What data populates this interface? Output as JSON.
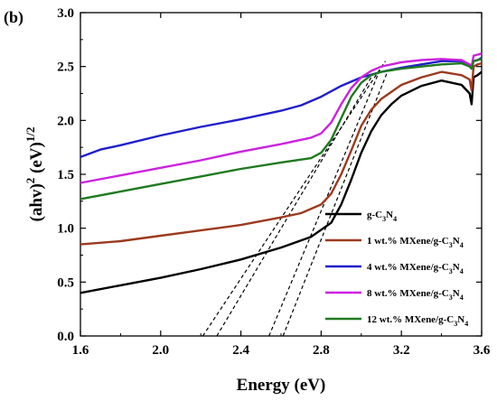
{
  "panel_label": "(b)",
  "chart_data": {
    "type": "line",
    "xlabel": "Energy (eV)",
    "ylabel": {
      "base": "(ahv)",
      "sup1": "2",
      "mid": " (eV)",
      "sup2": "1/2"
    },
    "xlim": [
      1.6,
      3.6
    ],
    "ylim": [
      0.0,
      3.0
    ],
    "xticks": [
      "1.6",
      "2.0",
      "2.4",
      "2.8",
      "3.2",
      "3.6"
    ],
    "yticks": [
      "0.0",
      "0.5",
      "1.0",
      "1.5",
      "2.0",
      "2.5",
      "3.0"
    ],
    "grid": false,
    "legend_position": "bottom-right",
    "series": [
      {
        "name": "g-C3N4",
        "label": {
          "pre": "g-C",
          "s1": "3",
          "mid": "N",
          "s2": "4"
        },
        "color": "#000000",
        "x": [
          1.6,
          1.8,
          2.0,
          2.2,
          2.4,
          2.6,
          2.75,
          2.85,
          2.9,
          2.95,
          3.0,
          3.05,
          3.1,
          3.15,
          3.2,
          3.3,
          3.4,
          3.5,
          3.54,
          3.55,
          3.56,
          3.58,
          3.6
        ],
        "y": [
          0.4,
          0.47,
          0.54,
          0.62,
          0.71,
          0.82,
          0.92,
          1.05,
          1.22,
          1.45,
          1.7,
          1.9,
          2.05,
          2.15,
          2.23,
          2.32,
          2.37,
          2.33,
          2.25,
          2.15,
          2.4,
          2.42,
          2.45
        ]
      },
      {
        "name": "1 wt.% MXene/g-C3N4",
        "label": {
          "pre": "1 wt.% MXene/g-C",
          "s1": "3",
          "mid": "N",
          "s2": "4"
        },
        "color": "#9C3A1E",
        "x": [
          1.6,
          1.8,
          2.0,
          2.2,
          2.4,
          2.6,
          2.7,
          2.8,
          2.85,
          2.9,
          2.95,
          3.0,
          3.05,
          3.1,
          3.2,
          3.3,
          3.4,
          3.5,
          3.54,
          3.55,
          3.56,
          3.58,
          3.6
        ],
        "y": [
          0.85,
          0.88,
          0.93,
          0.98,
          1.03,
          1.1,
          1.14,
          1.22,
          1.32,
          1.5,
          1.72,
          1.95,
          2.1,
          2.2,
          2.33,
          2.4,
          2.45,
          2.42,
          2.38,
          2.28,
          2.5,
          2.52,
          2.53
        ]
      },
      {
        "name": "4 wt.% MXene/g-C3N4",
        "label": {
          "pre": "4 wt.% MXene/g-C",
          "s1": "3",
          "mid": "N",
          "s2": "4"
        },
        "color": "#1F1FCC",
        "x": [
          1.6,
          1.7,
          1.8,
          2.0,
          2.2,
          2.4,
          2.6,
          2.7,
          2.8,
          2.9,
          3.0,
          3.1,
          3.2,
          3.3,
          3.4,
          3.5,
          3.54,
          3.55,
          3.56,
          3.58,
          3.6
        ],
        "y": [
          1.66,
          1.73,
          1.77,
          1.86,
          1.94,
          2.01,
          2.09,
          2.14,
          2.22,
          2.32,
          2.4,
          2.45,
          2.49,
          2.52,
          2.55,
          2.55,
          2.52,
          2.5,
          2.55,
          2.56,
          2.58
        ]
      },
      {
        "name": "8 wt.% MXene/g-C3N4",
        "label": {
          "pre": "8 wt.% MXene/g-C",
          "s1": "3",
          "mid": "N",
          "s2": "4"
        },
        "color": "#CC22E0",
        "x": [
          1.6,
          1.8,
          2.0,
          2.2,
          2.4,
          2.6,
          2.75,
          2.8,
          2.85,
          2.9,
          2.95,
          3.0,
          3.05,
          3.1,
          3.2,
          3.3,
          3.4,
          3.5,
          3.54,
          3.55,
          3.56,
          3.58,
          3.6
        ],
        "y": [
          1.42,
          1.49,
          1.56,
          1.63,
          1.71,
          1.78,
          1.84,
          1.88,
          1.98,
          2.15,
          2.3,
          2.4,
          2.46,
          2.5,
          2.54,
          2.56,
          2.57,
          2.56,
          2.52,
          2.5,
          2.6,
          2.61,
          2.62
        ]
      },
      {
        "name": "12 wt.% MXene/g-C3N4",
        "label": {
          "pre": "12 wt.% MXene/g-C",
          "s1": "3",
          "mid": "N",
          "s2": "4"
        },
        "color": "#1F7A1F",
        "x": [
          1.6,
          1.8,
          2.0,
          2.2,
          2.4,
          2.6,
          2.75,
          2.8,
          2.85,
          2.9,
          2.95,
          3.0,
          3.05,
          3.1,
          3.2,
          3.3,
          3.4,
          3.5,
          3.54,
          3.55,
          3.56,
          3.58,
          3.6
        ],
        "y": [
          1.27,
          1.34,
          1.41,
          1.48,
          1.55,
          1.61,
          1.65,
          1.7,
          1.82,
          2.02,
          2.22,
          2.35,
          2.42,
          2.45,
          2.48,
          2.5,
          2.52,
          2.53,
          2.5,
          2.48,
          2.55,
          2.56,
          2.57
        ]
      }
    ],
    "tangent_lines": [
      {
        "x": [
          2.21,
          3.12
        ],
        "y": [
          0.0,
          2.55
        ]
      },
      {
        "x": [
          2.28,
          3.05
        ],
        "y": [
          0.0,
          2.4
        ]
      },
      {
        "x": [
          2.54,
          3.1
        ],
        "y": [
          0.0,
          2.5
        ]
      },
      {
        "x": [
          2.61,
          3.13
        ],
        "y": [
          0.0,
          2.45
        ]
      }
    ]
  }
}
